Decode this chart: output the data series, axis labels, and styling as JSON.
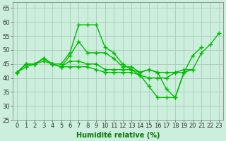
{
  "background_color": "#cceedd",
  "grid_color": "#aaccbb",
  "line_color": "#00bb00",
  "marker": "+",
  "markersize": 4,
  "linewidth": 1.0,
  "xlabel": "Humidité relative (%)",
  "xlabel_fontsize": 7,
  "xlabel_color": "#007700",
  "tick_fontsize": 6,
  "ylim": [
    25,
    67
  ],
  "xlim": [
    -0.5,
    23.5
  ],
  "yticks": [
    25,
    30,
    35,
    40,
    45,
    50,
    55,
    60,
    65
  ],
  "xticks": [
    0,
    1,
    2,
    3,
    4,
    5,
    6,
    7,
    8,
    9,
    10,
    11,
    12,
    13,
    14,
    15,
    16,
    17,
    18,
    19,
    20,
    21,
    22,
    23
  ],
  "curves": [
    [
      42,
      45,
      45,
      47,
      45,
      45,
      49,
      59,
      59,
      59,
      51,
      49,
      45,
      43,
      41,
      37,
      33,
      33,
      33,
      42,
      43,
      49,
      52,
      56
    ],
    [
      42,
      45,
      45,
      47,
      45,
      44,
      48,
      53,
      49,
      49,
      49,
      47,
      44,
      44,
      42,
      43,
      42,
      36,
      33,
      42,
      null,
      null,
      null,
      null
    ],
    [
      42,
      45,
      45,
      47,
      45,
      44,
      46,
      46,
      45,
      45,
      43,
      43,
      43,
      43,
      42,
      43,
      42,
      42,
      42,
      42,
      48,
      51,
      null,
      null
    ],
    [
      42,
      44,
      45,
      46,
      45,
      44,
      44,
      44,
      44,
      43,
      42,
      42,
      42,
      42,
      41,
      40,
      40,
      40,
      42,
      43,
      43,
      null,
      null,
      null
    ]
  ]
}
